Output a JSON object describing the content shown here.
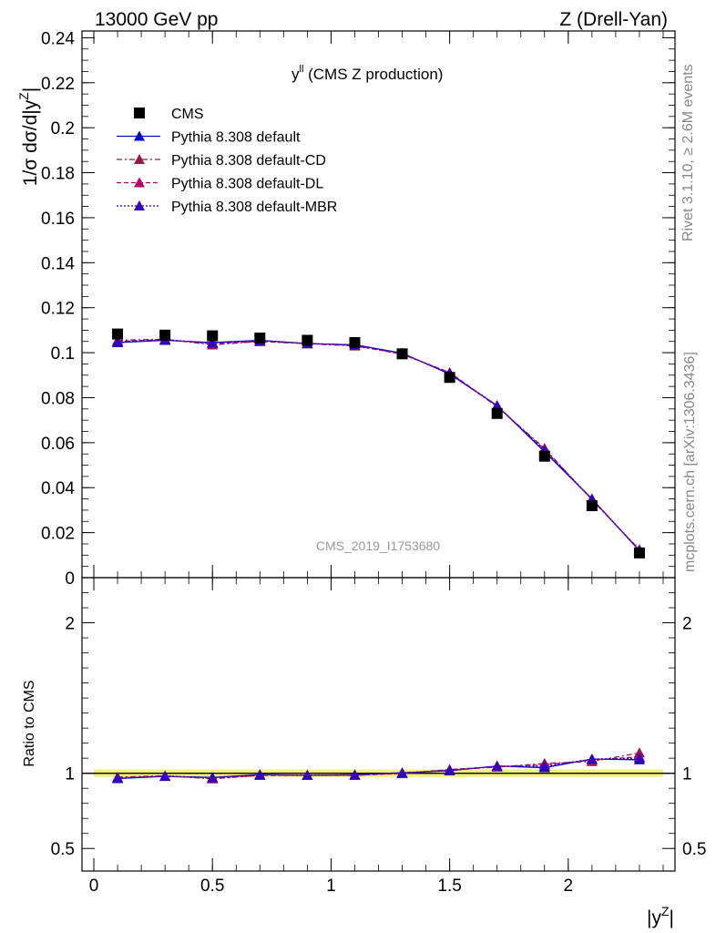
{
  "header": {
    "left": "13000 GeV pp",
    "right": "Z (Drell-Yan)"
  },
  "side": {
    "rivet": "Rivet 3.1.10, ≥ 2.6M events",
    "mcplots": "mcplots.cern.ch [arXiv:1306.3436]"
  },
  "colors": {
    "cms": "#000000",
    "default": "#0000cc",
    "cd": "#99184d",
    "dl": "#b3006b",
    "mbr": "#3300bb",
    "band": "#f0f07a",
    "band_inner": "#c8e88a"
  },
  "chart_data": [
    {
      "type": "line",
      "title_main": "y",
      "title_sup": "ll",
      "title_rest": " (CMS Z production)",
      "ylabel": "1/σ dσ/d|y",
      "ylabel_sup": "Z",
      "ylabel_end": "|",
      "watermark": "CMS_2019_I1753680",
      "xlim": [
        -0.05,
        2.45
      ],
      "ylim": [
        0,
        0.243
      ],
      "yticks": [
        0,
        0.02,
        0.04,
        0.06,
        0.08,
        0.1,
        0.12,
        0.14,
        0.16,
        0.18,
        0.2,
        0.22,
        0.24
      ],
      "ytick_labels": [
        "0",
        "0.02",
        "0.04",
        "0.06",
        "0.08",
        "0.1",
        "0.12",
        "0.14",
        "0.16",
        "0.18",
        "0.2",
        "0.22",
        "0.24"
      ],
      "legend_position": "top-left",
      "x": [
        0.1,
        0.3,
        0.5,
        0.7,
        0.9,
        1.1,
        1.3,
        1.5,
        1.7,
        1.9,
        2.1,
        2.3
      ],
      "series": [
        {
          "name": "CMS",
          "style": "data",
          "values": [
            0.1083,
            0.1078,
            0.1075,
            0.1065,
            0.1055,
            0.1045,
            0.0995,
            0.089,
            0.073,
            0.054,
            0.032,
            0.011
          ]
        },
        {
          "name": "Pythia 8.308 default",
          "style": "solid",
          "values": [
            0.1045,
            0.1055,
            0.1045,
            0.1055,
            0.104,
            0.1035,
            0.0998,
            0.0905,
            0.0765,
            0.056,
            0.035,
            0.012
          ]
        },
        {
          "name": "Pythia 8.308 default-CD",
          "style": "dashdot",
          "values": [
            0.1055,
            0.106,
            0.1035,
            0.105,
            0.104,
            0.103,
            0.0995,
            0.091,
            0.076,
            0.0575,
            0.0345,
            0.0125
          ]
        },
        {
          "name": "Pythia 8.308 default-DL",
          "style": "dashed",
          "values": [
            0.105,
            0.1058,
            0.104,
            0.105,
            0.1042,
            0.1032,
            0.0993,
            0.0912,
            0.0762,
            0.057,
            0.0348,
            0.0122
          ]
        },
        {
          "name": "Pythia 8.308 default-MBR",
          "style": "dotted",
          "values": [
            0.1048,
            0.1057,
            0.1043,
            0.1053,
            0.1041,
            0.1034,
            0.0996,
            0.0908,
            0.0764,
            0.0565,
            0.035,
            0.0121
          ]
        }
      ]
    },
    {
      "type": "line",
      "ylabel": "Ratio to CMS",
      "xlabel": "|y",
      "xlabel_sup": "Z",
      "xlabel_end": "|",
      "xlim": [
        -0.05,
        2.45
      ],
      "ylim": [
        0.35,
        2.3
      ],
      "yticks": [
        0.5,
        1,
        2
      ],
      "ytick_labels": [
        "0.5",
        "1",
        "2"
      ],
      "xticks": [
        0,
        0.5,
        1,
        1.5,
        2
      ],
      "xtick_labels": [
        "0",
        "0.5",
        "1",
        "1.5",
        "2"
      ],
      "reference": 1,
      "band": [
        0.975,
        1.025
      ],
      "x": [
        0.1,
        0.3,
        0.5,
        0.7,
        0.9,
        1.1,
        1.3,
        1.5,
        1.7,
        1.9,
        2.1,
        2.3
      ],
      "series": [
        {
          "name": "Pythia 8.308 default",
          "style": "solid",
          "values": [
            0.965,
            0.979,
            0.972,
            0.991,
            0.986,
            0.99,
            1.003,
            1.017,
            1.048,
            1.037,
            1.094,
            1.09
          ]
        },
        {
          "name": "Pythia 8.308 default-CD",
          "style": "dashdot",
          "values": [
            0.974,
            0.983,
            0.963,
            0.986,
            0.986,
            0.986,
            1.0,
            1.022,
            1.041,
            1.065,
            1.078,
            1.136
          ]
        },
        {
          "name": "Pythia 8.308 default-DL",
          "style": "dashed",
          "values": [
            0.969,
            0.981,
            0.967,
            0.986,
            0.988,
            0.988,
            0.998,
            1.025,
            1.044,
            1.056,
            1.088,
            1.109
          ]
        },
        {
          "name": "Pythia 8.308 default-MBR",
          "style": "dotted",
          "values": [
            0.968,
            0.981,
            0.97,
            0.989,
            0.987,
            0.989,
            1.001,
            1.02,
            1.047,
            1.046,
            1.094,
            1.1
          ]
        }
      ]
    }
  ]
}
